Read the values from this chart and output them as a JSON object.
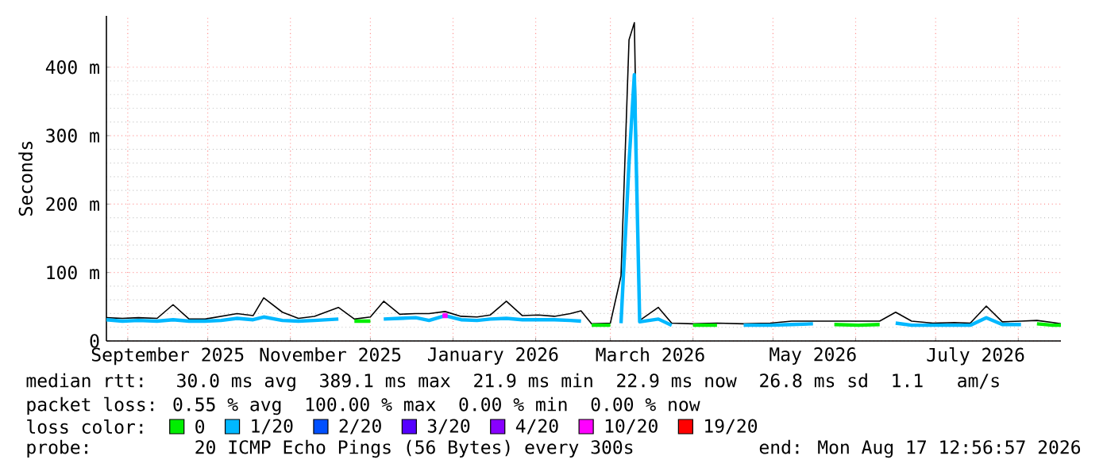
{
  "chart_data": {
    "type": "line",
    "ylabel": "Seconds",
    "x": [
      "2025-08-24",
      "2025-08-30",
      "2025-09-05",
      "2025-09-12",
      "2025-09-18",
      "2025-09-24",
      "2025-09-30",
      "2025-10-06",
      "2025-10-12",
      "2025-10-18",
      "2025-10-22",
      "2025-10-29",
      "2025-11-04",
      "2025-11-10",
      "2025-11-19",
      "2025-11-25",
      "2025-12-01",
      "2025-12-06",
      "2025-12-12",
      "2025-12-18",
      "2025-12-23",
      "2025-12-29",
      "2026-01-04",
      "2026-01-10",
      "2026-01-15",
      "2026-01-21",
      "2026-01-27",
      "2026-02-02",
      "2026-02-08",
      "2026-02-14",
      "2026-02-18",
      "2026-02-22",
      "2026-03-01",
      "2026-03-05",
      "2026-03-08",
      "2026-03-10",
      "2026-03-12",
      "2026-03-19",
      "2026-03-24",
      "2026-04-01",
      "2026-04-10",
      "2026-04-20",
      "2026-04-30",
      "2026-05-08",
      "2026-05-16",
      "2026-05-24",
      "2026-06-02",
      "2026-06-10",
      "2026-06-16",
      "2026-06-22",
      "2026-06-30",
      "2026-07-08",
      "2026-07-14",
      "2026-07-20",
      "2026-07-26",
      "2026-08-02",
      "2026-08-08",
      "2026-08-14",
      "2026-08-17"
    ],
    "series": [
      {
        "color": "#000000",
        "values": [
          34,
          33,
          34,
          33,
          53,
          32,
          32,
          36,
          40,
          37,
          63,
          42,
          33,
          36,
          49,
          32,
          35,
          58,
          39,
          40,
          40,
          43,
          36,
          35,
          38,
          58,
          37,
          38,
          36,
          40,
          44,
          25,
          26,
          95,
          440,
          465,
          30,
          49,
          26,
          25,
          26,
          25,
          26,
          29,
          29,
          29,
          29,
          29,
          42,
          29,
          26,
          27,
          26,
          51,
          28,
          29,
          30,
          27,
          25
        ]
      },
      {
        "name": "0",
        "color": "#00ee00",
        "values": [
          null,
          null,
          null,
          null,
          null,
          null,
          null,
          null,
          null,
          null,
          null,
          null,
          null,
          null,
          null,
          29,
          29,
          null,
          null,
          null,
          null,
          null,
          null,
          null,
          null,
          null,
          null,
          null,
          null,
          null,
          null,
          23,
          23,
          null,
          null,
          null,
          null,
          null,
          null,
          23,
          23,
          null,
          null,
          null,
          null,
          24,
          23,
          24,
          null,
          null,
          null,
          null,
          null,
          null,
          null,
          null,
          25,
          23,
          23
        ]
      },
      {
        "name": "1/20",
        "color": "#00b8ff",
        "values": [
          31,
          29,
          30,
          29,
          31,
          29,
          29,
          30,
          33,
          31,
          35,
          30,
          29,
          30,
          32,
          null,
          null,
          32,
          33,
          34,
          30,
          37,
          31,
          30,
          32,
          33,
          31,
          31,
          31,
          30,
          29,
          null,
          null,
          26,
          260,
          389,
          28,
          32,
          23,
          null,
          null,
          23,
          23,
          24,
          25,
          null,
          null,
          null,
          26,
          23,
          23,
          23,
          23,
          34,
          24,
          24,
          null,
          null,
          null
        ]
      },
      {
        "name": "2/20",
        "color": "#0050ff",
        "values": [
          null,
          null,
          null,
          null,
          null,
          null,
          null,
          null,
          null,
          null,
          null,
          null,
          null,
          null,
          null,
          null,
          null,
          null,
          null,
          null,
          null,
          null,
          null,
          null,
          null,
          null,
          null,
          null,
          null,
          null,
          null,
          null,
          null,
          null,
          null,
          null,
          null,
          null,
          null,
          null,
          null,
          null,
          null,
          null,
          null,
          null,
          null,
          null,
          null,
          null,
          null,
          null,
          null,
          null,
          null,
          null,
          null,
          null,
          null
        ]
      },
      {
        "name": "3/20",
        "color": "#5500ff",
        "values": [
          null,
          null,
          null,
          null,
          null,
          null,
          null,
          null,
          null,
          null,
          null,
          null,
          null,
          null,
          null,
          null,
          null,
          null,
          null,
          null,
          null,
          null,
          null,
          null,
          null,
          null,
          null,
          null,
          null,
          null,
          null,
          null,
          null,
          null,
          null,
          null,
          null,
          null,
          null,
          null,
          null,
          null,
          null,
          null,
          null,
          null,
          null,
          null,
          null,
          null,
          null,
          null,
          null,
          null,
          null,
          null,
          null,
          null,
          null
        ]
      },
      {
        "name": "4/20",
        "color": "#8800ff",
        "values": [
          null,
          null,
          null,
          null,
          null,
          null,
          null,
          null,
          null,
          null,
          null,
          null,
          null,
          null,
          null,
          null,
          null,
          null,
          null,
          null,
          null,
          null,
          null,
          null,
          null,
          null,
          null,
          null,
          null,
          null,
          null,
          null,
          null,
          null,
          null,
          null,
          null,
          null,
          null,
          null,
          null,
          null,
          null,
          null,
          null,
          null,
          null,
          null,
          null,
          null,
          null,
          null,
          null,
          null,
          null,
          null,
          null,
          null,
          null
        ]
      },
      {
        "name": "10/20",
        "type": "scatter",
        "color": "#ff00ff",
        "values": [
          null,
          null,
          null,
          null,
          null,
          null,
          null,
          null,
          null,
          null,
          null,
          null,
          null,
          null,
          null,
          null,
          null,
          null,
          null,
          null,
          null,
          37,
          null,
          null,
          null,
          null,
          null,
          null,
          null,
          null,
          null,
          null,
          null,
          null,
          null,
          null,
          null,
          null,
          null,
          null,
          null,
          null,
          null,
          null,
          null,
          null,
          null,
          null,
          null,
          null,
          null,
          null,
          null,
          null,
          null,
          null,
          null,
          null,
          null
        ]
      },
      {
        "name": "19/20",
        "color": "#ff0000",
        "values": [
          null,
          null,
          null,
          null,
          null,
          null,
          null,
          null,
          null,
          null,
          null,
          null,
          null,
          null,
          null,
          null,
          null,
          null,
          null,
          null,
          null,
          null,
          null,
          null,
          null,
          null,
          null,
          null,
          null,
          null,
          null,
          null,
          null,
          null,
          null,
          null,
          null,
          null,
          null,
          null,
          null,
          null,
          null,
          null,
          null,
          null,
          null,
          null,
          null,
          null,
          null,
          null,
          null,
          null,
          null,
          null,
          null,
          null,
          null
        ]
      }
    ],
    "xlim": [
      "2025-08-24",
      "2026-08-17"
    ],
    "xticks": [
      {
        "value": "2025-09-01",
        "label": null
      },
      {
        "value": "2025-09-16",
        "label": "September 2025"
      },
      {
        "value": "2025-10-01",
        "label": null
      },
      {
        "value": "2025-11-01",
        "label": null
      },
      {
        "value": "2025-11-16",
        "label": "November 2025"
      },
      {
        "value": "2025-12-01",
        "label": null
      },
      {
        "value": "2026-01-01",
        "label": null
      },
      {
        "value": "2026-01-16",
        "label": "January 2026"
      },
      {
        "value": "2026-02-01",
        "label": null
      },
      {
        "value": "2026-03-01",
        "label": null
      },
      {
        "value": "2026-03-16",
        "label": "March 2026"
      },
      {
        "value": "2026-04-01",
        "label": null
      },
      {
        "value": "2026-05-01",
        "label": null
      },
      {
        "value": "2026-05-16",
        "label": "May 2026"
      },
      {
        "value": "2026-06-01",
        "label": null
      },
      {
        "value": "2026-07-01",
        "label": null
      },
      {
        "value": "2026-07-16",
        "label": "July 2026"
      },
      {
        "value": "2026-08-01",
        "label": null
      }
    ],
    "ylim": [
      0,
      475
    ],
    "yticks": [
      0,
      {
        "value": 100,
        "label": "100 m"
      },
      {
        "value": 200,
        "label": "200 m"
      },
      {
        "value": 300,
        "label": "300 m"
      },
      {
        "value": 400,
        "label": "400 m"
      }
    ],
    "grid": true,
    "legend": "bottom",
    "legend_title": "loss color:",
    "annotations": [
      "median rtt:  30.0 ms avg  389.1 ms max  21.9 ms min  22.9 ms now  26.8 ms sd  1.1   am/s",
      "packet loss: 0.55 % avg  100.00 % max  0.00 % min  0.00 % now",
      "probe:       20 ICMP Echo Pings (56 Bytes) every 300s",
      "end: Mon Aug 17 12:56:57 2026"
    ]
  }
}
